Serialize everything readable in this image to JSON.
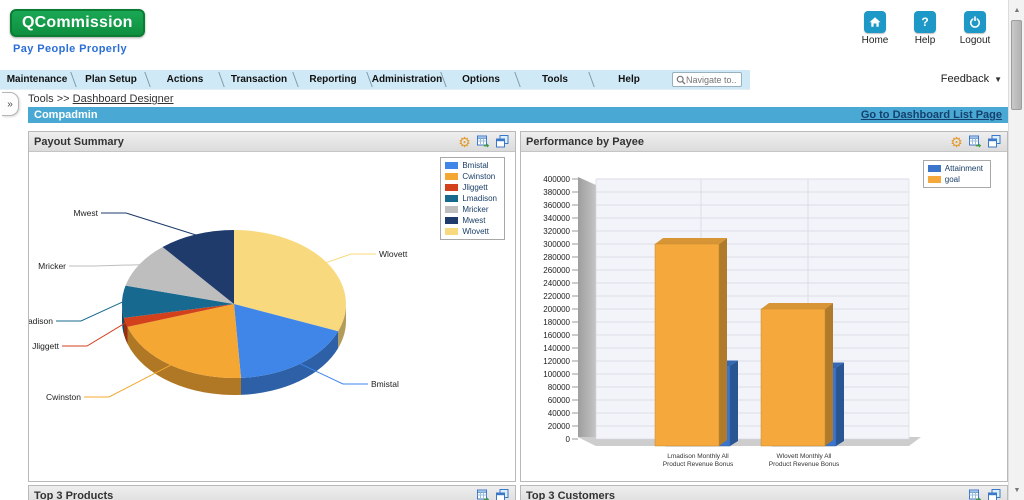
{
  "header": {
    "logo": "QCommission",
    "tagline": "Pay People Properly",
    "actions": [
      {
        "label": "Home",
        "icon": "home-icon"
      },
      {
        "label": "Help",
        "icon": "help-icon"
      },
      {
        "label": "Logout",
        "icon": "logout-icon"
      }
    ]
  },
  "nav": {
    "tabs": [
      "Maintenance",
      "Plan Setup",
      "Actions",
      "Transaction",
      "Reporting",
      "Administration",
      "Options",
      "Tools",
      "Help"
    ],
    "search_placeholder": "Navigate to..",
    "feedback_label": "Feedback"
  },
  "breadcrumb": {
    "prefix": "Tools >>",
    "link": "Dashboard Designer"
  },
  "titlebar": {
    "title": "Compadmin",
    "link": "Go to Dashboard List Page"
  },
  "panels": {
    "payout": {
      "title": "Payout Summary"
    },
    "performance": {
      "title": "Performance by Payee"
    },
    "top_products": {
      "title": "Top 3 Products"
    },
    "top_customers": {
      "title": "Top 3 Customers"
    }
  },
  "chart_data": [
    {
      "type": "pie",
      "title": "Payout Summary",
      "style": "3d",
      "values_are": "percent_estimate",
      "slices": [
        {
          "name": "Wlovett",
          "value": 31,
          "color": "#F8D97D"
        },
        {
          "name": "Bmistal",
          "value": 18,
          "color": "#3F86E8"
        },
        {
          "name": "Cwinston",
          "value": 21,
          "color": "#F5A733"
        },
        {
          "name": "Jliggett",
          "value": 2,
          "color": "#D2401C"
        },
        {
          "name": "Lmadison",
          "value": 7,
          "color": "#17698F"
        },
        {
          "name": "Mricker",
          "value": 10,
          "color": "#BEBEBE"
        },
        {
          "name": "Mwest",
          "value": 11,
          "color": "#1E3B6B"
        }
      ],
      "legend_order": [
        "Bmistal",
        "Cwinston",
        "Jliggett",
        "Lmadison",
        "Mricker",
        "Mwest",
        "Wlovett"
      ],
      "legend_position": "top-right"
    },
    {
      "type": "bar",
      "title": "Performance by Payee",
      "style": "3d",
      "categories": [
        "Lmadison Monthly All Product Revenue Bonus",
        "Wlovett Monthly All Product Revenue Bonus"
      ],
      "series": [
        {
          "name": "Attainment",
          "color": "#3B76CC",
          "values": [
            113000,
            110000
          ]
        },
        {
          "name": "goal",
          "color": "#F5A93C",
          "values": [
            300000,
            200000
          ]
        }
      ],
      "ylim": [
        0,
        400000
      ],
      "ytick_step": 20000,
      "grid": true,
      "legend_position": "top-right"
    }
  ],
  "colors": {
    "brand_green": "#109A44",
    "tagline_blue": "#2B6FD4",
    "button_blue": "#1E98C6",
    "tabbar_blue": "#CFE9F6",
    "titlebar_blue": "#4AA9D4",
    "panel_header_gray": "#E6E6E6",
    "link_navy": "#14406E",
    "gear_orange": "#E29A2E"
  }
}
